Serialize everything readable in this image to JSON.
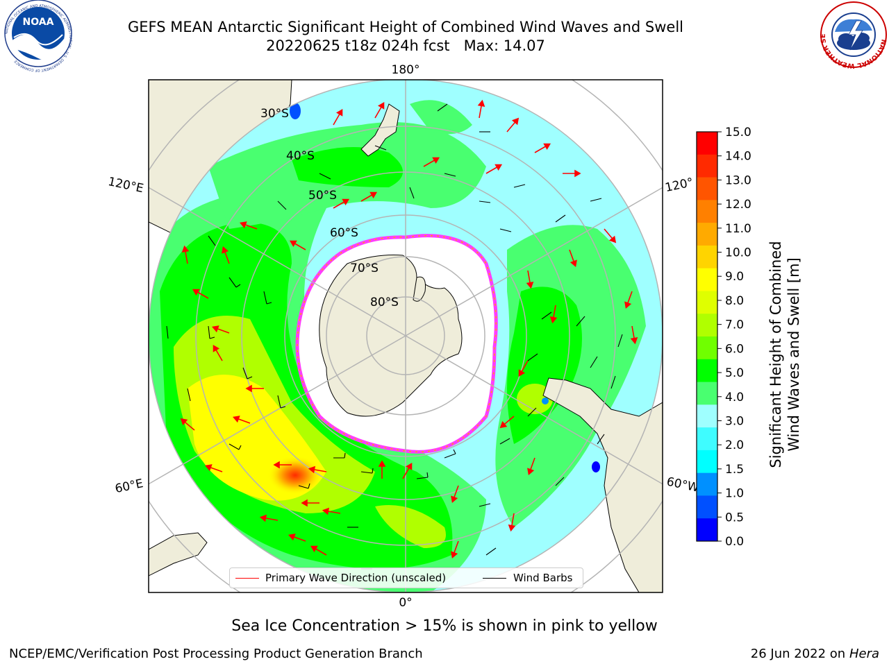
{
  "header": {
    "title_line1": "GEFS MEAN Antarctic Significant Height of Combined Wind Waves and Swell",
    "title_line2": "20220625 t18z 024h fcst   Max: 14.07"
  },
  "logos": {
    "left": {
      "icon": "noaa-logo-icon",
      "text": "NOAA",
      "ring_text": "NATIONAL OCEANIC AND ATMOSPHERIC ADMINISTRATION · U.S. DEPARTMENT OF COMMERCE"
    },
    "right": {
      "icon": "nws-logo-icon",
      "ring_text": "NATIONAL WEATHER SERVICE"
    }
  },
  "map": {
    "projection": "south-polar-stereographic",
    "lat_labels": [
      "30°S",
      "40°S",
      "50°S",
      "60°S",
      "70°S",
      "80°S"
    ],
    "lon_labels": {
      "top": "180°",
      "bottom": "0°",
      "upper_left": "120°E",
      "lower_left": "60°E",
      "upper_right": "120°",
      "lower_right": "60°W"
    },
    "colors": {
      "land": "#efedda",
      "ocean_low": "#9fffff",
      "ice_edge": "#ff3cff",
      "ice_fill": "#ffffff",
      "grid": "#b4b4b4",
      "arrow": "#ff0000",
      "barb": "#000000"
    }
  },
  "colorbar": {
    "label_line1": "Significant Height of Combined",
    "label_line2": "Wind Waves and Swell [m]",
    "ticks": [
      "15.0",
      "14.0",
      "13.0",
      "12.0",
      "11.0",
      "10.0",
      "9.0",
      "8.0",
      "7.0",
      "6.0",
      "5.0",
      "4.0",
      "3.0",
      "2.0",
      "1.5",
      "1.0",
      "0.5",
      "0.0"
    ],
    "colors_top_to_bottom": [
      "#ff0000",
      "#ff2a00",
      "#ff5500",
      "#ff8000",
      "#ffaa00",
      "#ffd400",
      "#ffff00",
      "#dfff00",
      "#b0ff00",
      "#70ff00",
      "#00ff00",
      "#49ff70",
      "#9fffff",
      "#3ffcff",
      "#00ffff",
      "#0090ff",
      "#0050ff",
      "#0000ff"
    ]
  },
  "legend": {
    "primary_wave_label": "Primary Wave Direction (unscaled)",
    "wind_barbs_label": "Wind Barbs"
  },
  "footer": {
    "note": "Sea Ice Concentration > 15% is shown in pink to yellow",
    "credit": "NCEP/EMC/Verification Post Processing Product Generation Branch",
    "date": "26 Jun 2022",
    "date_on": "on",
    "machine": "Hera"
  }
}
